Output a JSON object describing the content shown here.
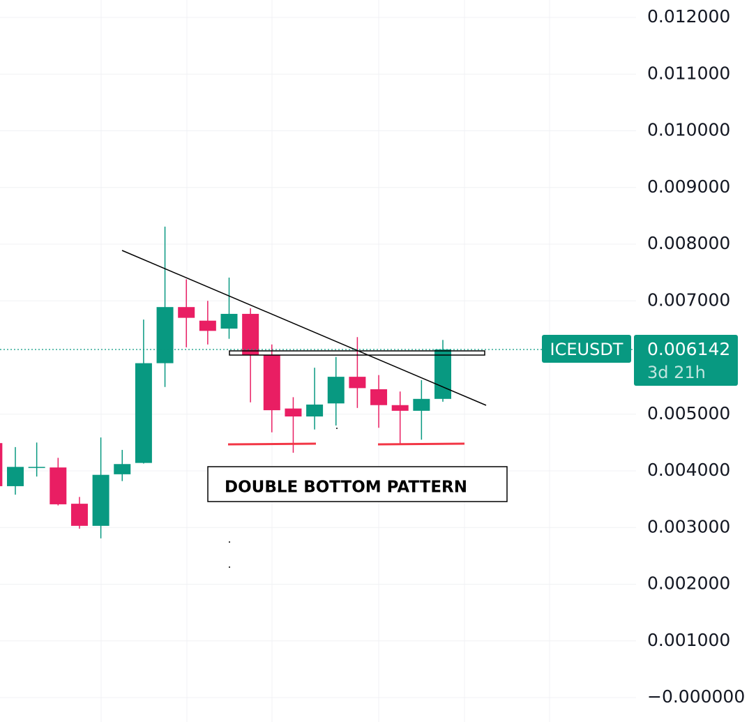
{
  "chart_data": {
    "type": "candlestick",
    "symbol": "ICEUSDT",
    "last_price": 0.006142,
    "countdown": "3d 21h",
    "annotations": [
      "DOUBLE BOTTOM PATTERN"
    ],
    "up_color": "#089981",
    "down_color": "#e91e63",
    "grid": true,
    "ylim": [
      0,
      0.012
    ],
    "yticks": [
      {
        "value": 0.012,
        "label": "0.012000"
      },
      {
        "value": 0.011,
        "label": "0.011000"
      },
      {
        "value": 0.01,
        "label": "0.010000"
      },
      {
        "value": 0.009,
        "label": "0.009000"
      },
      {
        "value": 0.008,
        "label": "0.008000"
      },
      {
        "value": 0.007,
        "label": "0.007000"
      },
      {
        "value": 0.005,
        "label": "0.005000"
      },
      {
        "value": 0.004,
        "label": "0.004000"
      },
      {
        "value": 0.003,
        "label": "0.003000"
      },
      {
        "value": 0.002,
        "label": "0.002000"
      },
      {
        "value": 0.001,
        "label": "0.001000"
      },
      {
        "value": 0,
        "label": "−0.000000"
      }
    ],
    "open": [
      0.00449,
      0.00373,
      0.00407,
      0.00406,
      0.00342,
      0.00303,
      0.00394,
      0.00414,
      0.0059,
      0.00689,
      0.00665,
      0.00651,
      0.00677,
      0.00604,
      0.0051,
      0.00496,
      0.00519,
      0.00566,
      0.00544,
      0.00516,
      0.00506,
      0.00527
    ],
    "high": [
      0.0045,
      0.00442,
      0.0045,
      0.00423,
      0.00354,
      0.00459,
      0.00437,
      0.00667,
      0.00831,
      0.00738,
      0.007,
      0.00741,
      0.00687,
      0.00623,
      0.0053,
      0.00582,
      0.00601,
      0.00636,
      0.00569,
      0.0054,
      0.0056,
      0.00631
    ],
    "low": [
      0.0037,
      0.00358,
      0.0039,
      0.00339,
      0.00298,
      0.00281,
      0.00382,
      0.00413,
      0.00548,
      0.00618,
      0.00623,
      0.00633,
      0.00521,
      0.00468,
      0.00432,
      0.00473,
      0.0048,
      0.00511,
      0.00476,
      0.00447,
      0.00455,
      0.00522
    ],
    "close": [
      0.00373,
      0.00407,
      0.00407,
      0.00341,
      0.00303,
      0.00393,
      0.00412,
      0.0059,
      0.00689,
      0.0067,
      0.00647,
      0.00677,
      0.00604,
      0.00507,
      0.00496,
      0.00517,
      0.00566,
      0.00546,
      0.00516,
      0.00506,
      0.00527,
      0.006142
    ]
  }
}
